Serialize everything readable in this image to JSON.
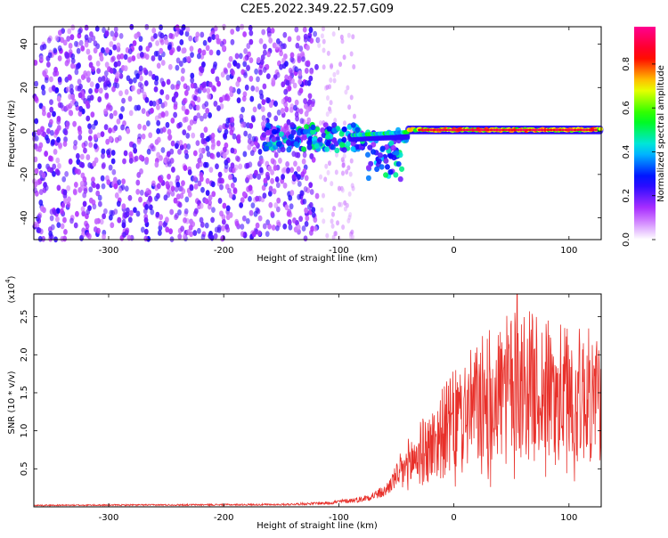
{
  "title": "C2E5.2022.349.22.57.G09",
  "chart_data": [
    {
      "type": "heatmap",
      "xlabel": "Height of straight line (km)",
      "ylabel": "Frequency (Hz)",
      "xlim": [
        -365,
        128
      ],
      "ylim": [
        -50,
        48
      ],
      "xticks": [
        -300,
        -200,
        -100,
        0,
        100
      ],
      "yticks": [
        -40,
        -20,
        0,
        20,
        40
      ],
      "colorbar": {
        "label": "Normalized spectral amplitude",
        "range": [
          0.0,
          0.97
        ],
        "ticks": [
          "0.0",
          "0.2",
          "0.4",
          "0.6",
          "0.8"
        ],
        "colors": [
          "#ffffff",
          "#b030ff",
          "#0000ff",
          "#00e0ff",
          "#00ff00",
          "#ffff00",
          "#ff0000",
          "#ff0090"
        ]
      },
      "regions": [
        {
          "name": "noise",
          "x_range": [
            -365,
            -120
          ],
          "freq_range": [
            -50,
            48
          ],
          "amplitude": "0.0-0.2"
        },
        {
          "name": "fading noise",
          "x_range": [
            -120,
            -85
          ],
          "freq_range": [
            -50,
            48
          ],
          "amplitude": "0.0-0.1"
        },
        {
          "name": "signal onset",
          "x_range": [
            -165,
            -40
          ],
          "freq_center": -3,
          "amplitude": "0.1-0.6"
        },
        {
          "name": "signal line",
          "x_range": [
            -40,
            128
          ],
          "freq_center": 0.5,
          "amplitude": "0.6-0.95"
        }
      ]
    },
    {
      "type": "line",
      "xlabel": "Height of straight line (km)",
      "ylabel": "SNR (10 * v/v)",
      "yscale_label": "(x10",
      "yscale_exp": "4",
      "xlim": [
        -365,
        128
      ],
      "ylim": [
        0,
        2.8
      ],
      "xticks": [
        -300,
        -200,
        -100,
        0,
        100
      ],
      "yticks": [
        "0.5",
        "1.0",
        "1.5",
        "2.0",
        "2.5"
      ],
      "color": "#e8302a",
      "envelope": {
        "x": [
          -365,
          -150,
          -110,
          -80,
          -60,
          -45,
          -40,
          -30,
          -20,
          -10,
          0,
          20,
          40,
          60,
          80,
          100,
          128
        ],
        "y": [
          0.02,
          0.03,
          0.05,
          0.1,
          0.2,
          0.5,
          0.6,
          0.75,
          0.85,
          1.05,
          1.2,
          1.45,
          1.65,
          1.75,
          1.65,
          1.6,
          1.55
        ]
      },
      "max": {
        "x": 55,
        "y": 2.8
      }
    }
  ]
}
